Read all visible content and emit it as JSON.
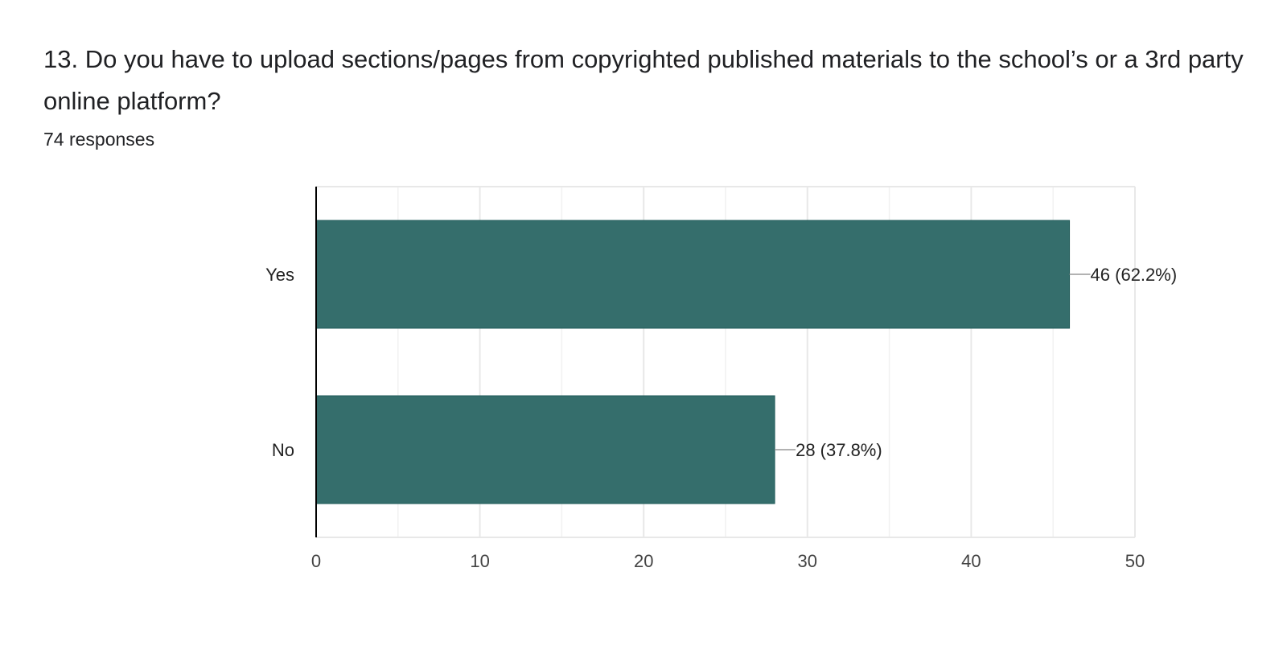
{
  "question": {
    "title": "13. Do you have to upload sections/pages from copyrighted published materials to the school’s or a 3rd party online platform?",
    "responses": "74 responses"
  },
  "colors": {
    "bar": "#356e6c",
    "bar_border": "#1f5a58",
    "grid": "#e8e8e8",
    "axis": "#000000",
    "leader": "#999999"
  },
  "chart_data": {
    "type": "bar",
    "orientation": "horizontal",
    "categories": [
      "Yes",
      "No"
    ],
    "values": [
      46,
      28
    ],
    "data_labels": [
      "46 (62.2%)",
      "28 (37.8%)"
    ],
    "xlim": [
      0,
      50
    ],
    "xticks": [
      0,
      10,
      20,
      30,
      40,
      50
    ],
    "xtick_labels": [
      "0",
      "10",
      "20",
      "30",
      "40",
      "50"
    ],
    "minor_gridlines": true,
    "grid": true,
    "legend": "none",
    "title": "",
    "xlabel": "",
    "ylabel": ""
  }
}
